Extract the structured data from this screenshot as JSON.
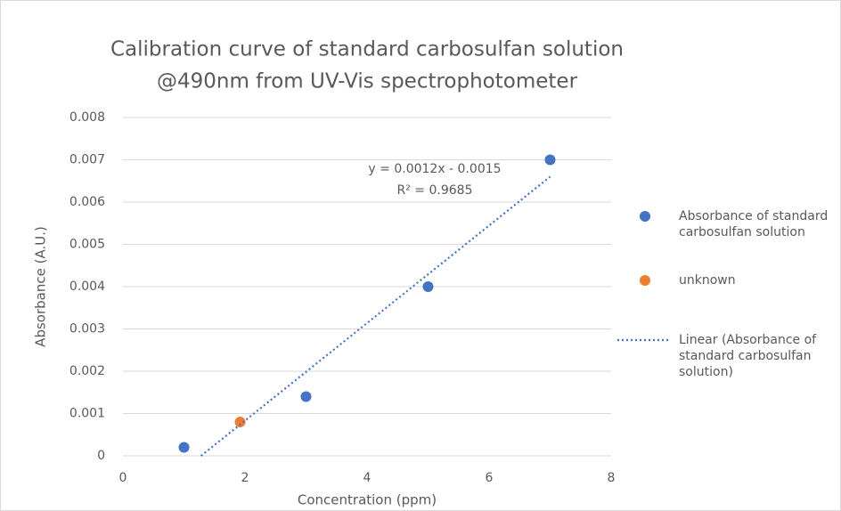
{
  "chart_data": {
    "type": "scatter",
    "title": [
      "Calibration curve of standard carbosulfan solution",
      "@490nm from UV-Vis spectrophotometer"
    ],
    "x_label": "Concentration (ppm)",
    "y_label": "Absorbance (A.U.)",
    "xlim": [
      0,
      8
    ],
    "xticks": [
      0,
      2,
      4,
      6,
      8
    ],
    "ylim": [
      0,
      0.008
    ],
    "yticks": [
      0,
      0.001,
      0.002,
      0.003,
      0.004,
      0.005,
      0.006,
      0.007,
      0.008
    ],
    "grid": true,
    "legend": "right",
    "series": [
      {
        "name": "Absorbance of standard carbosulfan solution",
        "color": "#4472c4",
        "mode": "markers",
        "x": [
          1,
          3,
          5,
          7
        ],
        "values": [
          0.0002,
          0.0014,
          0.004,
          0.007
        ]
      },
      {
        "name": "unknown",
        "color": "#ed7d31",
        "mode": "markers",
        "x": [
          1.92
        ],
        "values": [
          0.0008
        ]
      },
      {
        "name": "Linear (Absorbance of standard carbosulfan solution)",
        "color": "#4472c4",
        "mode": "line",
        "line_style": "dotted",
        "x": [
          1.28,
          7
        ],
        "values": [
          0,
          0.0066
        ]
      }
    ],
    "annotations": [
      "y = 0.0012x - 0.0015",
      "R² = 0.9685"
    ]
  }
}
